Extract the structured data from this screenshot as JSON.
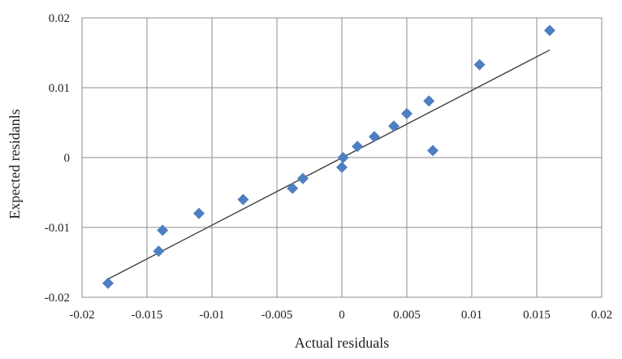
{
  "chart_data": {
    "type": "scatter",
    "title": "",
    "xlabel": "Actual residuals",
    "ylabel": "Expected residanls",
    "xlim": [
      -0.02,
      0.02
    ],
    "ylim": [
      -0.02,
      0.02
    ],
    "x_ticks": [
      -0.02,
      -0.015,
      -0.01,
      -0.005,
      0,
      0.005,
      0.01,
      0.015,
      0.02
    ],
    "x_tick_labels": [
      "-0.02",
      "-0.015",
      "-0.01",
      "-0.005",
      "0",
      "0.005",
      "0.01",
      "0.015",
      "0.02"
    ],
    "y_ticks": [
      0.02,
      0.01,
      0,
      -0.01,
      -0.02
    ],
    "y_tick_labels": [
      "0.02",
      "0.01",
      "0",
      "-0.01",
      "-0.02"
    ],
    "grid": true,
    "legend": "none",
    "marker": "diamond",
    "marker_color": "#4f7fc0",
    "trendline_color": "#404040",
    "series": [
      {
        "points": [
          [
            -0.018,
            -0.018
          ],
          [
            -0.0141,
            -0.0134
          ],
          [
            -0.0138,
            -0.0104
          ],
          [
            -0.011,
            -0.008
          ],
          [
            -0.0076,
            -0.006
          ],
          [
            -0.0038,
            -0.0044
          ],
          [
            -0.003,
            -0.003
          ],
          [
            0.0,
            -0.0014
          ],
          [
            0.0001,
            0.0
          ],
          [
            0.0012,
            0.0016
          ],
          [
            0.0025,
            0.003
          ],
          [
            0.004,
            0.0045
          ],
          [
            0.005,
            0.0063
          ],
          [
            0.0067,
            0.0081
          ],
          [
            0.007,
            0.001
          ],
          [
            0.0106,
            0.0133
          ],
          [
            0.016,
            0.0182
          ]
        ]
      }
    ],
    "trendline": {
      "x": [
        -0.018,
        0.016
      ],
      "y": [
        -0.0174,
        0.0154
      ]
    }
  }
}
